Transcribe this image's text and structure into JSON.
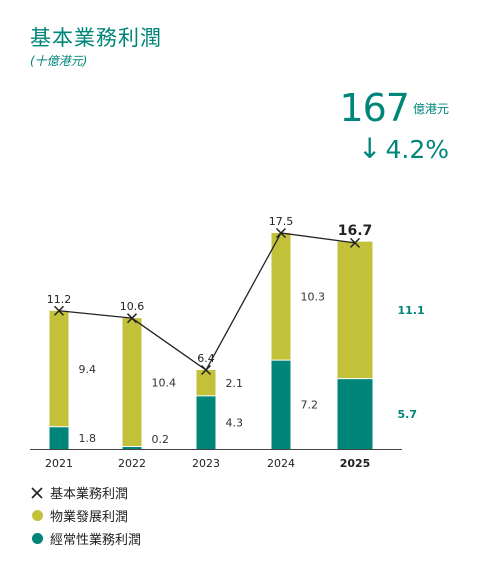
{
  "header": {
    "title": "基本業務利潤",
    "subtitle": "(十億港元)",
    "kpi_value": "167",
    "kpi_unit": "億港元",
    "kpi_change": "4.2%"
  },
  "legend": [
    {
      "label": "基本業務利潤",
      "icon": "cross"
    },
    {
      "label": "物業發展利潤",
      "color": "#c3c13a"
    },
    {
      "label": "經常性業務利潤",
      "color": "#00857a"
    }
  ],
  "chart_data": {
    "type": "bar",
    "stacked": true,
    "categories": [
      "2021",
      "2022",
      "2023",
      "2024",
      "2025"
    ],
    "series": [
      {
        "name": "經常性業務利潤",
        "color": "#00857a",
        "values": [
          1.8,
          0.2,
          4.3,
          7.2,
          5.7
        ]
      },
      {
        "name": "物業發展利潤",
        "color": "#c3c13a",
        "values": [
          9.4,
          10.4,
          2.1,
          10.3,
          11.1
        ]
      }
    ],
    "totals": {
      "name": "基本業務利潤",
      "values": [
        11.2,
        10.6,
        6.4,
        17.5,
        16.7
      ]
    },
    "highlight_index": 4,
    "ylim": [
      0,
      17.5
    ],
    "grid": false
  }
}
